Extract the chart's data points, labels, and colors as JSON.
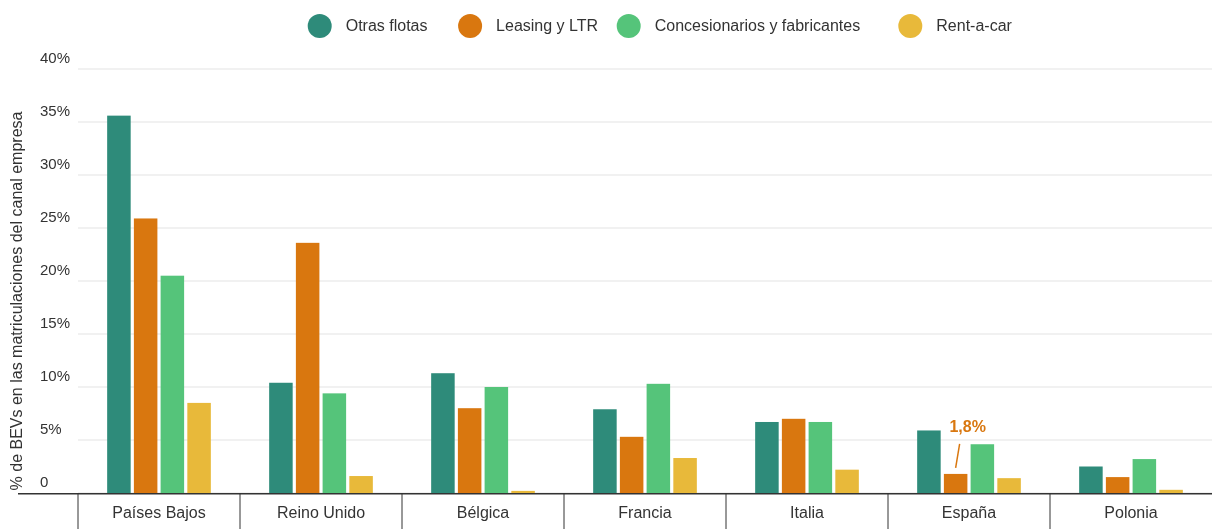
{
  "chart_data": {
    "type": "bar",
    "ylabel": "% de BEVs en las matriculaciones del canal empresa",
    "categories": [
      "Países Bajos",
      "Reino Unido",
      "Bélgica",
      "Francia",
      "Italia",
      "España",
      "Polonia"
    ],
    "series": [
      {
        "name": "Otras flotas",
        "color": "#2e8b7a",
        "values": [
          35.6,
          10.4,
          11.3,
          7.9,
          6.7,
          5.9,
          2.5
        ]
      },
      {
        "name": "Leasing y LTR",
        "color": "#d9770f",
        "values": [
          25.9,
          23.6,
          8.0,
          5.3,
          7.0,
          1.8,
          1.5
        ]
      },
      {
        "name": "Concesionarios y fabricantes",
        "color": "#55c47a",
        "values": [
          20.5,
          9.4,
          10.0,
          10.3,
          6.7,
          4.6,
          3.2
        ]
      },
      {
        "name": "Rent-a-car",
        "color": "#e8b93a",
        "values": [
          8.5,
          1.6,
          0.2,
          3.3,
          2.2,
          1.4,
          0.3
        ]
      }
    ],
    "ylim": [
      0,
      40
    ],
    "yticks": [
      {
        "value": 0,
        "label": "0"
      },
      {
        "value": 5,
        "label": "5%"
      },
      {
        "value": 10,
        "label": "10%"
      },
      {
        "value": 15,
        "label": "15%"
      },
      {
        "value": 20,
        "label": "20%"
      },
      {
        "value": 25,
        "label": "25%"
      },
      {
        "value": 30,
        "label": "30%"
      },
      {
        "value": 35,
        "label": "35%"
      },
      {
        "value": 40,
        "label": "40%"
      }
    ],
    "grid": "y",
    "legend": "top",
    "annotations": [
      {
        "text": "1,8%",
        "x": "España",
        "y": 1.8
      }
    ]
  }
}
